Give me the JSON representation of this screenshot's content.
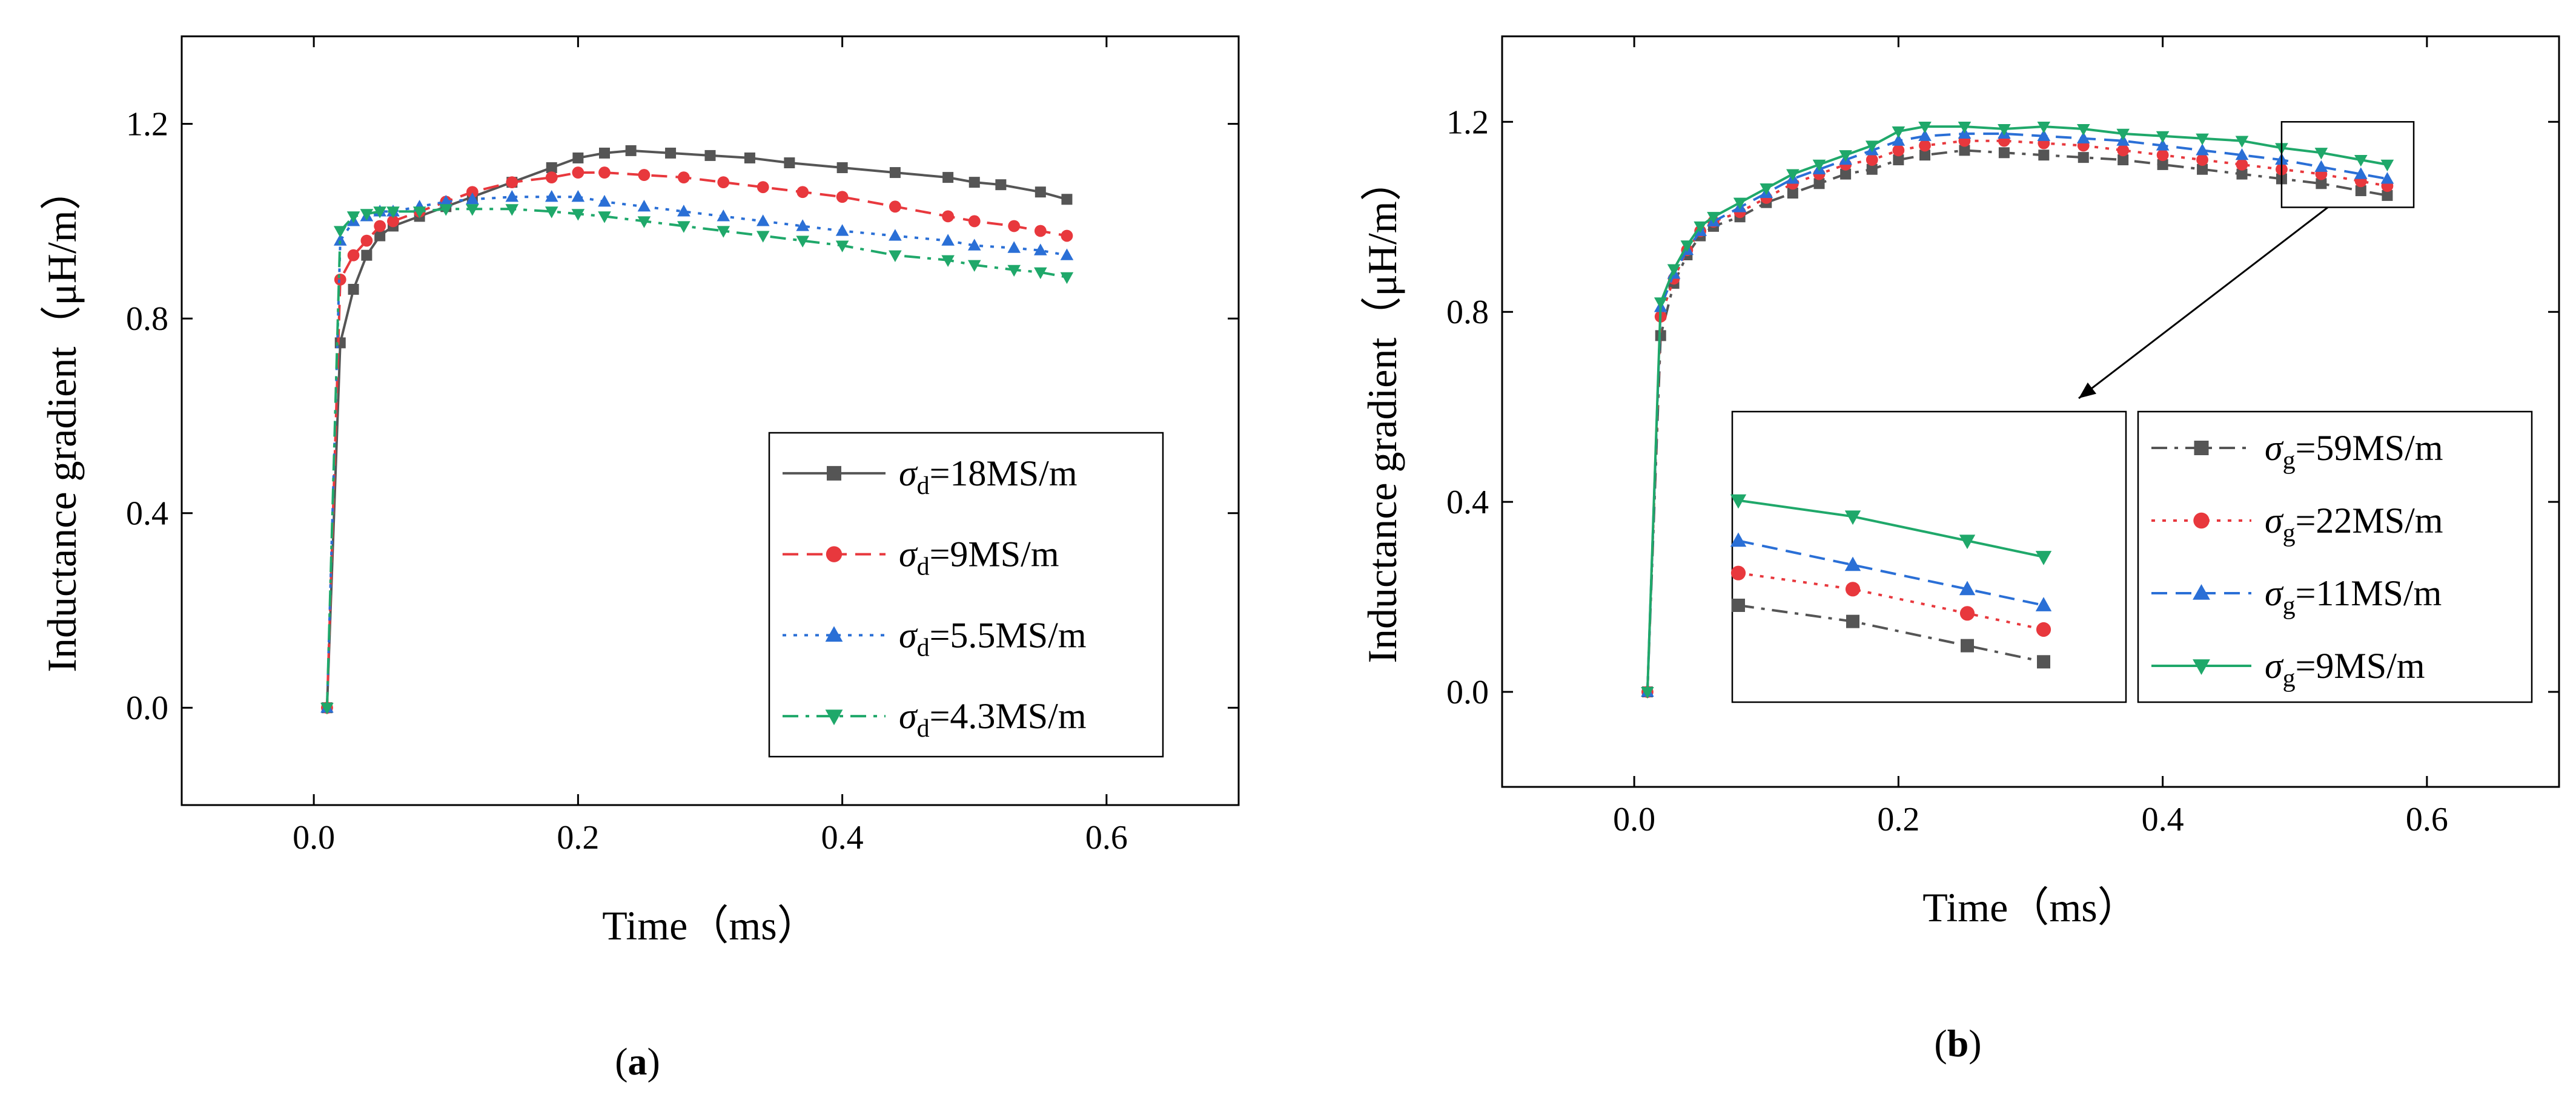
{
  "chart_data": [
    {
      "panel_label": "a",
      "type": "line",
      "xlabel": "Time",
      "xunit": "（ms）",
      "ylabel": "Inductance gradient",
      "yunit": "（μH/m）",
      "xlim": [
        -0.1,
        0.7
      ],
      "ylim": [
        -0.2,
        1.38
      ],
      "xticks": [
        0.0,
        0.2,
        0.4,
        0.6
      ],
      "yticks": [
        0.0,
        0.4,
        0.8,
        1.2
      ],
      "xtick_labels": [
        "0.0",
        "0.2",
        "0.4",
        "0.6"
      ],
      "ytick_labels": [
        "0.0",
        "0.4",
        "0.8",
        "1.2"
      ],
      "legend_position": "lower-right",
      "series": [
        {
          "name_sym": "σ",
          "name_sub": "d",
          "name_val": "=18MS/m",
          "color": "#555555",
          "marker": "square",
          "dash": "solid",
          "points": [
            [
              0.01,
              0.0
            ],
            [
              0.02,
              0.75
            ],
            [
              0.03,
              0.86
            ],
            [
              0.04,
              0.93
            ],
            [
              0.05,
              0.97
            ],
            [
              0.06,
              0.99
            ],
            [
              0.08,
              1.01
            ],
            [
              0.1,
              1.03
            ],
            [
              0.12,
              1.05
            ],
            [
              0.15,
              1.08
            ],
            [
              0.18,
              1.11
            ],
            [
              0.2,
              1.13
            ],
            [
              0.22,
              1.14
            ],
            [
              0.24,
              1.145
            ],
            [
              0.27,
              1.14
            ],
            [
              0.3,
              1.135
            ],
            [
              0.33,
              1.13
            ],
            [
              0.36,
              1.12
            ],
            [
              0.4,
              1.11
            ],
            [
              0.44,
              1.1
            ],
            [
              0.48,
              1.09
            ],
            [
              0.5,
              1.08
            ],
            [
              0.52,
              1.075
            ],
            [
              0.55,
              1.06
            ],
            [
              0.57,
              1.045
            ]
          ]
        },
        {
          "name_sym": "σ",
          "name_sub": "d",
          "name_val": "=9MS/m",
          "color": "#e8383d",
          "marker": "circle",
          "dash": "dash",
          "points": [
            [
              0.01,
              0.0
            ],
            [
              0.02,
              0.88
            ],
            [
              0.03,
              0.93
            ],
            [
              0.04,
              0.96
            ],
            [
              0.05,
              0.99
            ],
            [
              0.06,
              1.0
            ],
            [
              0.08,
              1.02
            ],
            [
              0.1,
              1.04
            ],
            [
              0.12,
              1.06
            ],
            [
              0.15,
              1.08
            ],
            [
              0.18,
              1.09
            ],
            [
              0.2,
              1.1
            ],
            [
              0.22,
              1.1
            ],
            [
              0.25,
              1.095
            ],
            [
              0.28,
              1.09
            ],
            [
              0.31,
              1.08
            ],
            [
              0.34,
              1.07
            ],
            [
              0.37,
              1.06
            ],
            [
              0.4,
              1.05
            ],
            [
              0.44,
              1.03
            ],
            [
              0.48,
              1.01
            ],
            [
              0.5,
              1.0
            ],
            [
              0.53,
              0.99
            ],
            [
              0.55,
              0.98
            ],
            [
              0.57,
              0.97
            ]
          ]
        },
        {
          "name_sym": "σ",
          "name_sub": "d",
          "name_val": "=5.5MS/m",
          "color": "#2a6fd6",
          "marker": "triangle-up",
          "dash": "dot",
          "points": [
            [
              0.01,
              0.0
            ],
            [
              0.02,
              0.96
            ],
            [
              0.03,
              1.0
            ],
            [
              0.04,
              1.01
            ],
            [
              0.05,
              1.02
            ],
            [
              0.06,
              1.02
            ],
            [
              0.08,
              1.03
            ],
            [
              0.1,
              1.04
            ],
            [
              0.12,
              1.045
            ],
            [
              0.15,
              1.05
            ],
            [
              0.18,
              1.05
            ],
            [
              0.2,
              1.05
            ],
            [
              0.22,
              1.04
            ],
            [
              0.25,
              1.03
            ],
            [
              0.28,
              1.02
            ],
            [
              0.31,
              1.01
            ],
            [
              0.34,
              1.0
            ],
            [
              0.37,
              0.99
            ],
            [
              0.4,
              0.98
            ],
            [
              0.44,
              0.97
            ],
            [
              0.48,
              0.96
            ],
            [
              0.5,
              0.95
            ],
            [
              0.53,
              0.945
            ],
            [
              0.55,
              0.94
            ],
            [
              0.57,
              0.93
            ]
          ]
        },
        {
          "name_sym": "σ",
          "name_sub": "d",
          "name_val": "=4.3MS/m",
          "color": "#1fa86a",
          "marker": "triangle-down",
          "dash": "dashdot",
          "points": [
            [
              0.01,
              0.0
            ],
            [
              0.02,
              0.98
            ],
            [
              0.03,
              1.01
            ],
            [
              0.04,
              1.015
            ],
            [
              0.05,
              1.02
            ],
            [
              0.06,
              1.02
            ],
            [
              0.08,
              1.02
            ],
            [
              0.1,
              1.025
            ],
            [
              0.12,
              1.025
            ],
            [
              0.15,
              1.025
            ],
            [
              0.18,
              1.02
            ],
            [
              0.2,
              1.015
            ],
            [
              0.22,
              1.01
            ],
            [
              0.25,
              1.0
            ],
            [
              0.28,
              0.99
            ],
            [
              0.31,
              0.98
            ],
            [
              0.34,
              0.97
            ],
            [
              0.37,
              0.96
            ],
            [
              0.4,
              0.95
            ],
            [
              0.44,
              0.93
            ],
            [
              0.48,
              0.92
            ],
            [
              0.5,
              0.91
            ],
            [
              0.53,
              0.9
            ],
            [
              0.55,
              0.895
            ],
            [
              0.57,
              0.885
            ]
          ]
        }
      ]
    },
    {
      "panel_label": "b",
      "type": "line",
      "xlabel": "Time",
      "xunit": "（ms）",
      "ylabel": "Inductance gradient",
      "yunit": "（μH/m）",
      "xlim": [
        -0.1,
        0.7
      ],
      "ylim": [
        -0.2,
        1.38
      ],
      "xticks": [
        0.0,
        0.2,
        0.4,
        0.6
      ],
      "yticks": [
        0.0,
        0.4,
        0.8,
        1.2
      ],
      "xtick_labels": [
        "0.0",
        "0.2",
        "0.4",
        "0.6"
      ],
      "ytick_labels": [
        "0.0",
        "0.4",
        "0.8",
        "1.2"
      ],
      "legend_position": "lower-right",
      "zoom_region": {
        "x": [
          0.49,
          0.59
        ],
        "y": [
          1.02,
          1.2
        ]
      },
      "series": [
        {
          "name_sym": "σ",
          "name_sub": "g",
          "name_val": "=59MS/m",
          "color": "#555555",
          "marker": "square",
          "dash": "dashdot",
          "points": [
            [
              0.01,
              0.0
            ],
            [
              0.02,
              0.75
            ],
            [
              0.03,
              0.86
            ],
            [
              0.04,
              0.92
            ],
            [
              0.05,
              0.96
            ],
            [
              0.06,
              0.98
            ],
            [
              0.08,
              1.0
            ],
            [
              0.1,
              1.03
            ],
            [
              0.12,
              1.05
            ],
            [
              0.14,
              1.07
            ],
            [
              0.16,
              1.09
            ],
            [
              0.18,
              1.1
            ],
            [
              0.2,
              1.12
            ],
            [
              0.22,
              1.13
            ],
            [
              0.25,
              1.14
            ],
            [
              0.28,
              1.135
            ],
            [
              0.31,
              1.13
            ],
            [
              0.34,
              1.125
            ],
            [
              0.37,
              1.12
            ],
            [
              0.4,
              1.11
            ],
            [
              0.43,
              1.1
            ],
            [
              0.46,
              1.09
            ],
            [
              0.49,
              1.08
            ],
            [
              0.52,
              1.07
            ],
            [
              0.55,
              1.055
            ],
            [
              0.57,
              1.045
            ]
          ]
        },
        {
          "name_sym": "σ",
          "name_sub": "g",
          "name_val": "=22MS/m",
          "color": "#e8383d",
          "marker": "circle",
          "dash": "dot",
          "points": [
            [
              0.01,
              0.0
            ],
            [
              0.02,
              0.79
            ],
            [
              0.03,
              0.87
            ],
            [
              0.04,
              0.93
            ],
            [
              0.05,
              0.97
            ],
            [
              0.06,
              0.99
            ],
            [
              0.08,
              1.01
            ],
            [
              0.1,
              1.04
            ],
            [
              0.12,
              1.07
            ],
            [
              0.14,
              1.09
            ],
            [
              0.16,
              1.11
            ],
            [
              0.18,
              1.12
            ],
            [
              0.2,
              1.14
            ],
            [
              0.22,
              1.15
            ],
            [
              0.25,
              1.16
            ],
            [
              0.28,
              1.16
            ],
            [
              0.31,
              1.155
            ],
            [
              0.34,
              1.15
            ],
            [
              0.37,
              1.14
            ],
            [
              0.4,
              1.13
            ],
            [
              0.43,
              1.12
            ],
            [
              0.46,
              1.11
            ],
            [
              0.49,
              1.1
            ],
            [
              0.52,
              1.09
            ],
            [
              0.55,
              1.075
            ],
            [
              0.57,
              1.065
            ]
          ]
        },
        {
          "name_sym": "σ",
          "name_sub": "g",
          "name_val": "=11MS/m",
          "color": "#2a6fd6",
          "marker": "triangle-up",
          "dash": "dash",
          "points": [
            [
              0.01,
              0.0
            ],
            [
              0.02,
              0.81
            ],
            [
              0.03,
              0.88
            ],
            [
              0.04,
              0.93
            ],
            [
              0.05,
              0.97
            ],
            [
              0.06,
              0.99
            ],
            [
              0.08,
              1.02
            ],
            [
              0.1,
              1.05
            ],
            [
              0.12,
              1.08
            ],
            [
              0.14,
              1.1
            ],
            [
              0.16,
              1.12
            ],
            [
              0.18,
              1.14
            ],
            [
              0.2,
              1.16
            ],
            [
              0.22,
              1.17
            ],
            [
              0.25,
              1.175
            ],
            [
              0.28,
              1.175
            ],
            [
              0.31,
              1.17
            ],
            [
              0.34,
              1.165
            ],
            [
              0.37,
              1.16
            ],
            [
              0.4,
              1.15
            ],
            [
              0.43,
              1.14
            ],
            [
              0.46,
              1.13
            ],
            [
              0.49,
              1.12
            ],
            [
              0.52,
              1.105
            ],
            [
              0.55,
              1.09
            ],
            [
              0.57,
              1.08
            ]
          ]
        },
        {
          "name_sym": "σ",
          "name_sub": "g",
          "name_val": "=9MS/m",
          "color": "#1fa86a",
          "marker": "triangle-down",
          "dash": "solid",
          "points": [
            [
              0.01,
              0.0
            ],
            [
              0.02,
              0.82
            ],
            [
              0.03,
              0.89
            ],
            [
              0.04,
              0.94
            ],
            [
              0.05,
              0.98
            ],
            [
              0.06,
              1.0
            ],
            [
              0.08,
              1.03
            ],
            [
              0.1,
              1.06
            ],
            [
              0.12,
              1.09
            ],
            [
              0.14,
              1.11
            ],
            [
              0.16,
              1.13
            ],
            [
              0.18,
              1.15
            ],
            [
              0.2,
              1.18
            ],
            [
              0.22,
              1.19
            ],
            [
              0.25,
              1.19
            ],
            [
              0.28,
              1.185
            ],
            [
              0.31,
              1.19
            ],
            [
              0.34,
              1.185
            ],
            [
              0.37,
              1.175
            ],
            [
              0.4,
              1.17
            ],
            [
              0.43,
              1.165
            ],
            [
              0.46,
              1.16
            ],
            [
              0.49,
              1.145
            ],
            [
              0.52,
              1.135
            ],
            [
              0.55,
              1.12
            ],
            [
              0.57,
              1.11
            ]
          ]
        }
      ]
    }
  ]
}
